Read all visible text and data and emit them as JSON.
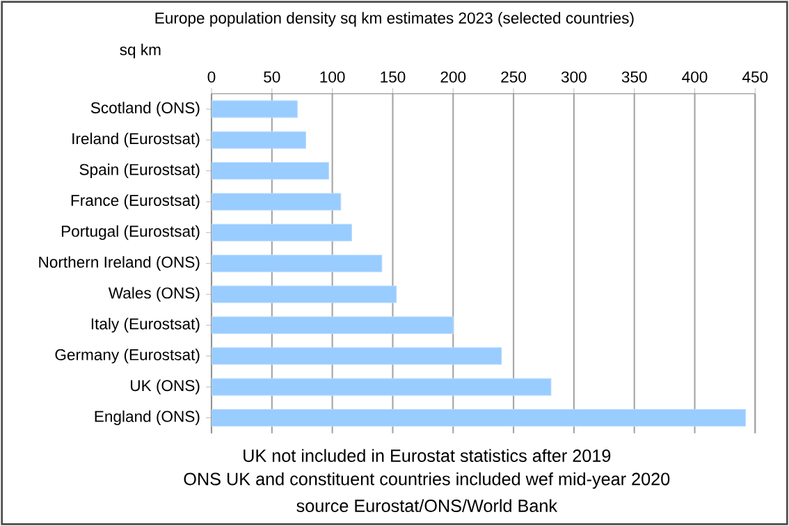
{
  "chart_data": {
    "type": "bar",
    "orientation": "horizontal",
    "title": "Europe population density sq km estimates 2023 (selected countries)",
    "xlabel": "sq km",
    "categories": [
      "Scotland (ONS)",
      "Ireland (Eurostsat)",
      "Spain (Eurostsat)",
      "France (Eurostsat)",
      "Portugal (Eurostsat)",
      "Northern Ireland (ONS)",
      "Wales (ONS)",
      "Italy (Eurostsat)",
      "Germany (Eurostsat)",
      "UK (ONS)",
      "England (ONS)"
    ],
    "values": [
      71,
      78,
      97,
      107,
      116,
      141,
      153,
      200,
      240,
      281,
      442
    ],
    "color": "#99ccff",
    "xlim": [
      0,
      450
    ],
    "xticks": [
      0,
      50,
      100,
      150,
      200,
      250,
      300,
      350,
      400,
      450
    ],
    "grid": "x",
    "annotations": [
      "UK not included in Eurostat  statistics after 2019",
      "ONS UK and constituent countries included wef mid-year 2020",
      "source Eurostat/ONS/World Bank"
    ]
  }
}
